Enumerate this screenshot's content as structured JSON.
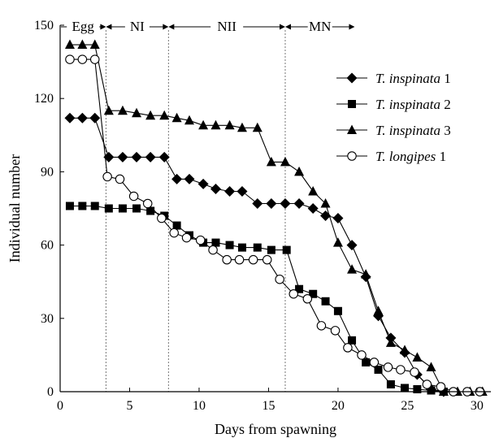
{
  "chart_data": {
    "type": "line",
    "xlabel": "Days from spawning",
    "ylabel": "Individual number",
    "xlim": [
      0,
      31
    ],
    "ylim": [
      0,
      150
    ],
    "xticks": [
      0,
      5,
      10,
      15,
      20,
      25,
      30
    ],
    "yticks": [
      0,
      30,
      60,
      90,
      120,
      150
    ],
    "grid": false,
    "legend_position": "top-right",
    "stages": [
      {
        "label": "Egg",
        "start": 0,
        "end": 3.3
      },
      {
        "label": "NI",
        "start": 3.3,
        "end": 7.8
      },
      {
        "label": "NII",
        "start": 7.8,
        "end": 16.2
      },
      {
        "label": "MN",
        "start": 16.2,
        "end": 21.2
      }
    ],
    "series": [
      {
        "name_italic": "T. inspinata",
        "name_suffix": " 1",
        "marker": "diamond",
        "points": [
          [
            0.7,
            112
          ],
          [
            1.6,
            112
          ],
          [
            2.5,
            112
          ],
          [
            3.5,
            96
          ],
          [
            4.5,
            96
          ],
          [
            5.5,
            96
          ],
          [
            6.5,
            96
          ],
          [
            7.5,
            96
          ],
          [
            8.4,
            87
          ],
          [
            9.3,
            87
          ],
          [
            10.3,
            85
          ],
          [
            11.2,
            83
          ],
          [
            12.2,
            82
          ],
          [
            13.1,
            82
          ],
          [
            14.2,
            77
          ],
          [
            15.2,
            77
          ],
          [
            16.2,
            77
          ],
          [
            17.2,
            77
          ],
          [
            18.2,
            75
          ],
          [
            19.1,
            72
          ],
          [
            20.0,
            71
          ],
          [
            21.0,
            60
          ],
          [
            22.0,
            47
          ],
          [
            22.9,
            31
          ],
          [
            23.8,
            22
          ],
          [
            24.8,
            16
          ],
          [
            25.7,
            7
          ],
          [
            26.7,
            1
          ],
          [
            27.6,
            0
          ]
        ]
      },
      {
        "name_italic": "T. inspinata",
        "name_suffix": " 2",
        "marker": "square",
        "points": [
          [
            0.7,
            76
          ],
          [
            1.6,
            76
          ],
          [
            2.5,
            76
          ],
          [
            3.5,
            75
          ],
          [
            4.5,
            75
          ],
          [
            5.5,
            75
          ],
          [
            6.5,
            74
          ],
          [
            7.5,
            72
          ],
          [
            8.4,
            68
          ],
          [
            9.3,
            64
          ],
          [
            10.3,
            61
          ],
          [
            11.2,
            61
          ],
          [
            12.2,
            60
          ],
          [
            13.1,
            59
          ],
          [
            14.2,
            59
          ],
          [
            15.2,
            58
          ],
          [
            16.3,
            58
          ],
          [
            17.2,
            42
          ],
          [
            18.2,
            40
          ],
          [
            19.1,
            37
          ],
          [
            20.0,
            33
          ],
          [
            21.0,
            21
          ],
          [
            22.0,
            12
          ],
          [
            22.9,
            9
          ],
          [
            23.8,
            3
          ],
          [
            24.8,
            1.5
          ],
          [
            25.7,
            1
          ],
          [
            26.7,
            0.5
          ],
          [
            27.6,
            0
          ]
        ]
      },
      {
        "name_italic": "T. inspinata",
        "name_suffix": " 3",
        "marker": "triangle",
        "points": [
          [
            0.7,
            142
          ],
          [
            1.6,
            142
          ],
          [
            2.5,
            142
          ],
          [
            3.5,
            115
          ],
          [
            4.5,
            115
          ],
          [
            5.5,
            114
          ],
          [
            6.5,
            113
          ],
          [
            7.5,
            113
          ],
          [
            8.4,
            112
          ],
          [
            9.3,
            111
          ],
          [
            10.3,
            109
          ],
          [
            11.2,
            109
          ],
          [
            12.2,
            109
          ],
          [
            13.1,
            108
          ],
          [
            14.2,
            108
          ],
          [
            15.2,
            94
          ],
          [
            16.2,
            94
          ],
          [
            17.2,
            90
          ],
          [
            18.2,
            82
          ],
          [
            19.1,
            77
          ],
          [
            20.0,
            61
          ],
          [
            21.0,
            50
          ],
          [
            22.0,
            48
          ],
          [
            22.9,
            33
          ],
          [
            23.8,
            20
          ],
          [
            24.8,
            17
          ],
          [
            25.7,
            14
          ],
          [
            26.7,
            10
          ],
          [
            27.6,
            0
          ],
          [
            28.6,
            0
          ],
          [
            29.5,
            0
          ],
          [
            30.4,
            0
          ]
        ]
      },
      {
        "name_italic": "T. longipes",
        "name_suffix": " 1",
        "marker": "circle-open",
        "points": [
          [
            0.7,
            136
          ],
          [
            1.6,
            136
          ],
          [
            2.5,
            136
          ],
          [
            3.4,
            88
          ],
          [
            4.3,
            87
          ],
          [
            5.3,
            80
          ],
          [
            6.3,
            77
          ],
          [
            7.3,
            71
          ],
          [
            8.2,
            65
          ],
          [
            9.1,
            63
          ],
          [
            10.1,
            62
          ],
          [
            11.0,
            58
          ],
          [
            12.0,
            54
          ],
          [
            12.9,
            54
          ],
          [
            13.9,
            54
          ],
          [
            14.9,
            54
          ],
          [
            15.8,
            46
          ],
          [
            16.8,
            40
          ],
          [
            17.8,
            38
          ],
          [
            18.8,
            27
          ],
          [
            19.8,
            25
          ],
          [
            20.7,
            18
          ],
          [
            21.7,
            15
          ],
          [
            22.6,
            12
          ],
          [
            23.6,
            10
          ],
          [
            24.5,
            9
          ],
          [
            25.5,
            8
          ],
          [
            26.4,
            3
          ],
          [
            27.4,
            2
          ],
          [
            28.3,
            0
          ],
          [
            29.3,
            0
          ],
          [
            30.2,
            0
          ]
        ]
      }
    ]
  }
}
